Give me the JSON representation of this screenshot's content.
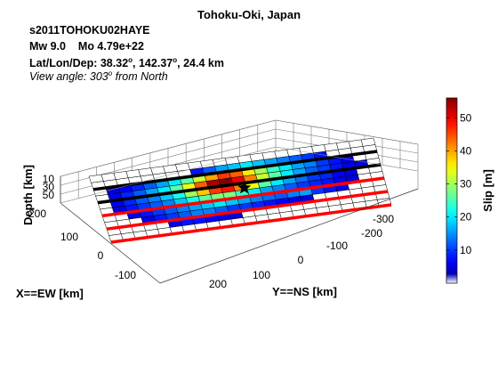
{
  "figure": {
    "title": "Tohoku-Oki, Japan",
    "event_id": "s2011TOHOKU02HAYE",
    "mw_label": "Mw 9.0",
    "mo_label": "Mo 4.79e+22",
    "latlon_prefix": "Lat/Lon/Dep: ",
    "lat": "38.32",
    "lon": "142.37",
    "deg_symbol": "o",
    "dep": "24.4 km",
    "view_prefix": "View angle: 303",
    "view_suffix": " from North"
  },
  "chart_data": {
    "type": "heatmap",
    "projection": "3d-perspective fault surface",
    "x_axis": {
      "label": "X==EW [km]",
      "ticks": [
        "200",
        "100",
        "0",
        "-100"
      ]
    },
    "y_axis": {
      "label": "Y==NS [km]",
      "ticks": [
        "-300",
        "-200",
        "-100",
        "0",
        "100",
        "200"
      ]
    },
    "z_axis": {
      "label": "Depth [km]",
      "ticks": [
        "10",
        "30",
        "50"
      ]
    },
    "colorbar": {
      "label": "Slip [m]",
      "ticks": [
        10,
        20,
        30,
        40,
        50
      ],
      "range": [
        0,
        56
      ],
      "colormap": "jet-with-white-min"
    },
    "grid_rows": 10,
    "grid_cols": 23,
    "slip_m": [
      [
        0,
        0,
        0,
        0,
        0,
        0,
        0,
        0,
        0,
        0,
        0,
        0,
        0,
        0,
        0,
        0,
        0,
        0,
        0,
        0,
        0,
        0,
        0
      ],
      [
        0,
        0,
        0,
        0,
        0,
        0,
        0,
        0,
        8,
        12,
        16,
        18,
        20,
        18,
        16,
        14,
        12,
        10,
        8,
        0,
        0,
        0,
        0
      ],
      [
        0,
        5,
        7,
        9,
        12,
        16,
        20,
        26,
        32,
        40,
        46,
        44,
        36,
        30,
        24,
        20,
        16,
        14,
        10,
        8,
        6,
        0,
        0
      ],
      [
        0,
        6,
        9,
        12,
        16,
        20,
        26,
        34,
        44,
        54,
        56,
        50,
        42,
        32,
        26,
        20,
        16,
        12,
        10,
        8,
        6,
        5,
        0
      ],
      [
        0,
        6,
        9,
        12,
        14,
        18,
        22,
        30,
        38,
        46,
        48,
        42,
        34,
        26,
        20,
        16,
        13,
        10,
        9,
        7,
        5,
        0,
        0
      ],
      [
        0,
        5,
        8,
        10,
        12,
        14,
        18,
        22,
        26,
        28,
        28,
        24,
        20,
        16,
        14,
        12,
        10,
        9,
        8,
        6,
        5,
        0,
        0
      ],
      [
        0,
        0,
        6,
        8,
        10,
        12,
        14,
        16,
        18,
        20,
        18,
        16,
        14,
        13,
        12,
        14,
        16,
        10,
        8,
        6,
        0,
        0,
        0
      ],
      [
        0,
        0,
        0,
        6,
        8,
        10,
        12,
        14,
        14,
        12,
        10,
        10,
        9,
        8,
        7,
        6,
        5,
        0,
        0,
        0,
        0,
        0,
        0
      ],
      [
        0,
        0,
        0,
        0,
        0,
        6,
        8,
        8,
        7,
        6,
        5,
        0,
        0,
        0,
        0,
        0,
        0,
        0,
        0,
        0,
        0,
        0,
        0
      ],
      [
        0,
        0,
        0,
        0,
        0,
        0,
        0,
        0,
        0,
        0,
        0,
        0,
        0,
        0,
        0,
        0,
        0,
        0,
        0,
        0,
        0,
        0,
        0
      ]
    ],
    "hypocenter": {
      "row": 4.7,
      "col": 11.8,
      "marker": "star"
    },
    "reference_lines": [
      {
        "color": "#000000",
        "row": 2
      },
      {
        "color": "#000000",
        "row": 4
      },
      {
        "color": "#ff0000",
        "row": 6
      },
      {
        "color": "#ff0000",
        "row": 8
      },
      {
        "color": "#ff0000",
        "row": 10
      }
    ]
  }
}
